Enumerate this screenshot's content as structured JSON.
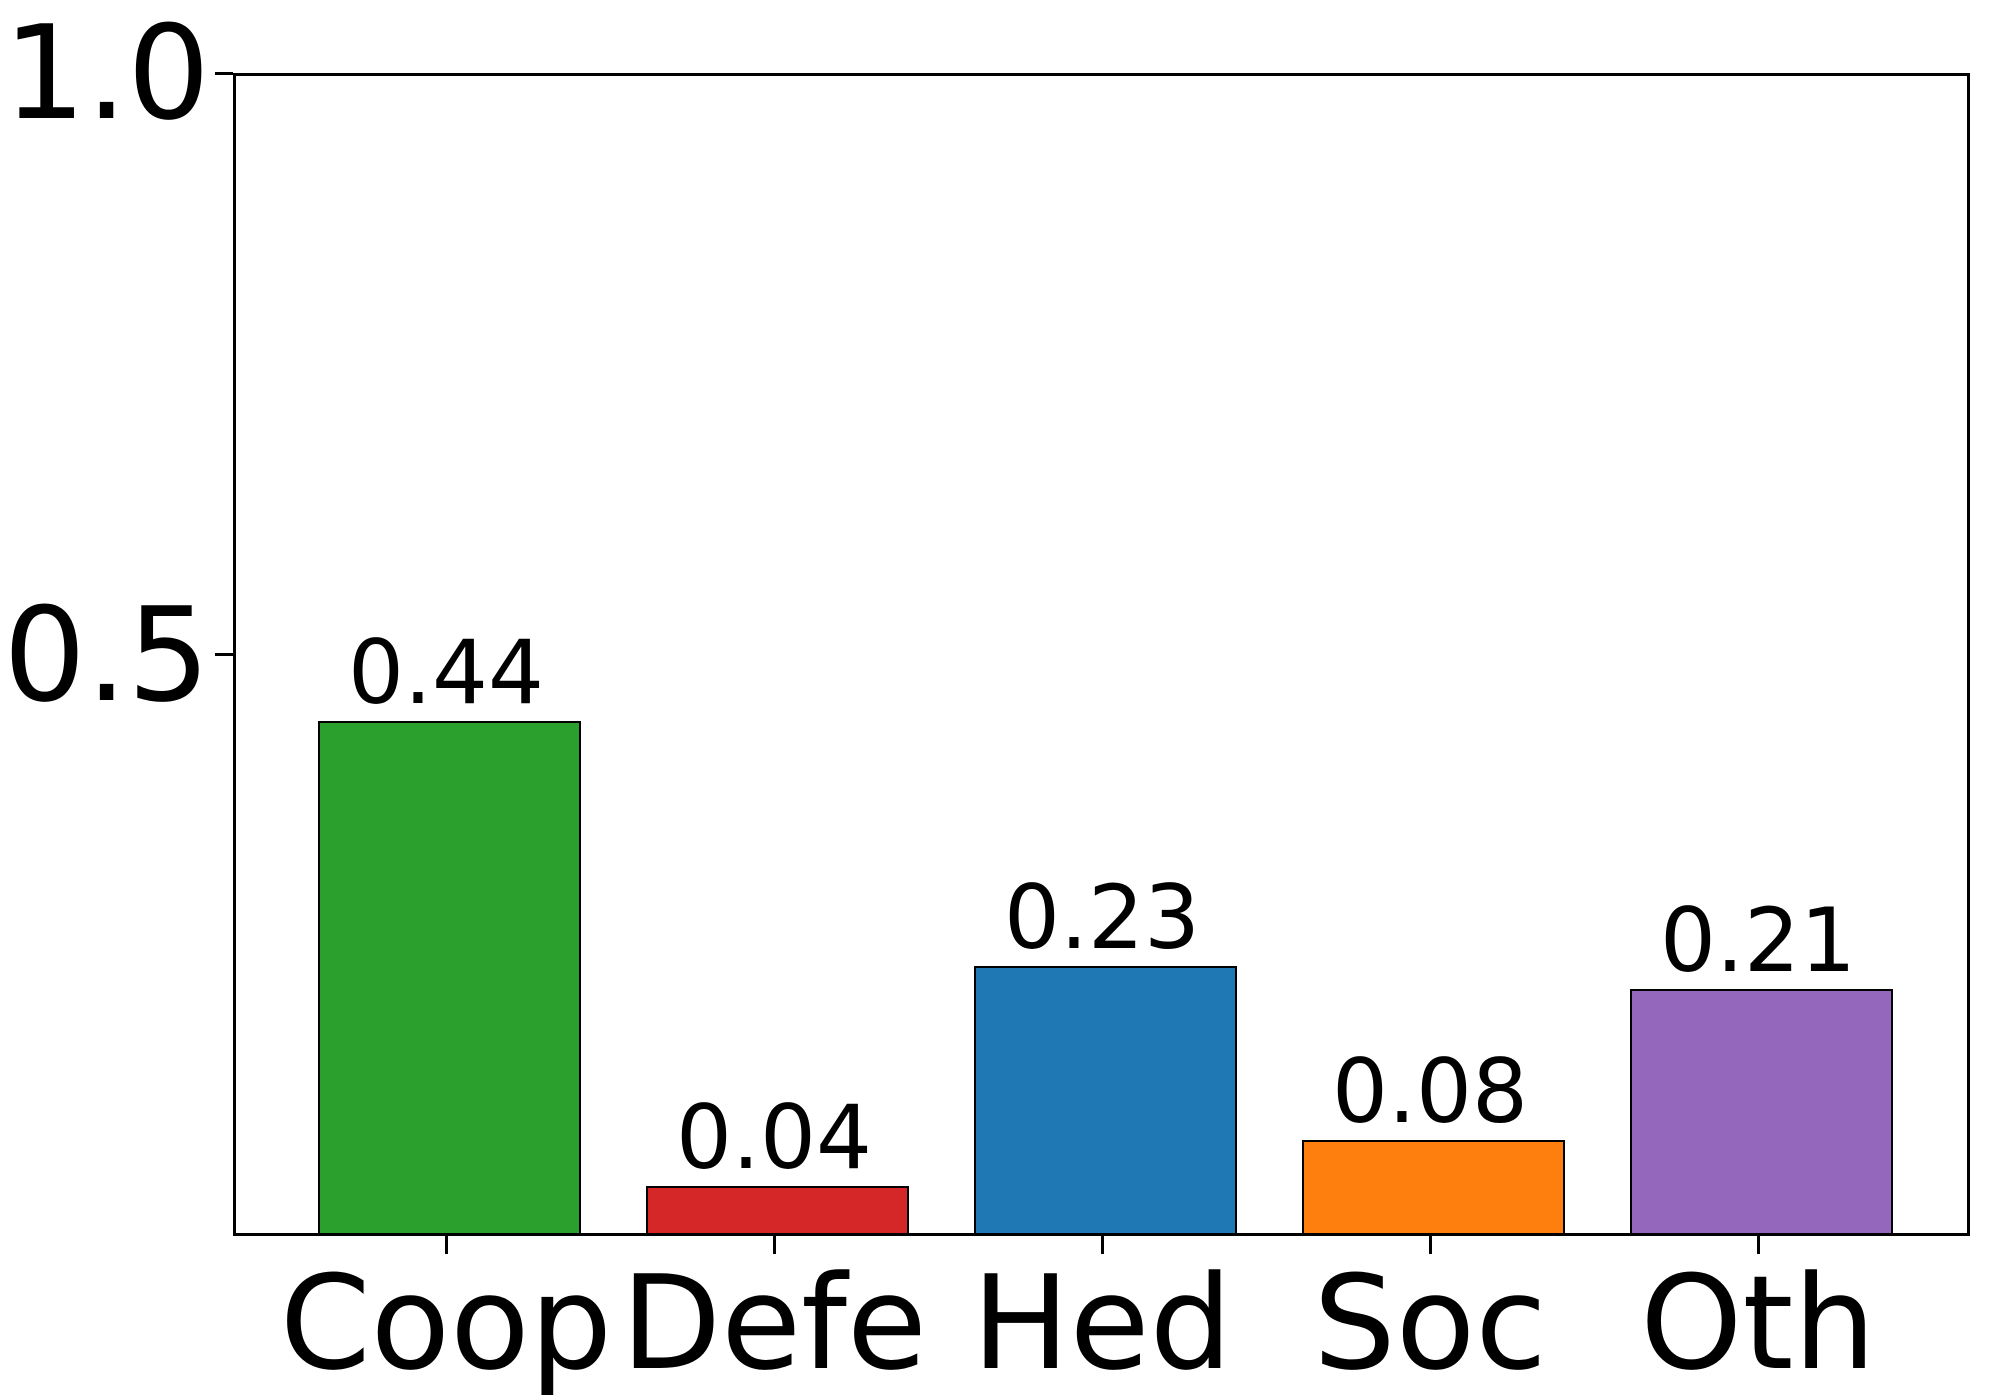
{
  "chart_data": {
    "type": "bar",
    "categories": [
      "Coop",
      "Defe",
      "Hed",
      "Soc",
      "Oth"
    ],
    "values": [
      0.44,
      0.04,
      0.23,
      0.08,
      0.21
    ],
    "bar_value_labels": [
      "0.44",
      "0.04",
      "0.23",
      "0.08",
      "0.21"
    ],
    "bar_colors": [
      "#2ca02c",
      "#d62728",
      "#1f77b4",
      "#ff7f0e",
      "#9467bd"
    ],
    "bar_edge_color": "#000000",
    "title": "",
    "xlabel": "",
    "ylabel": "",
    "ylim": [
      0,
      1.0
    ],
    "yticks": [
      {
        "value": 0.5,
        "label": "0.5"
      },
      {
        "value": 1.0,
        "label": "1.0"
      }
    ],
    "grid": false,
    "legend": null,
    "background_color": "#ffffff",
    "text_color": "#000000"
  }
}
